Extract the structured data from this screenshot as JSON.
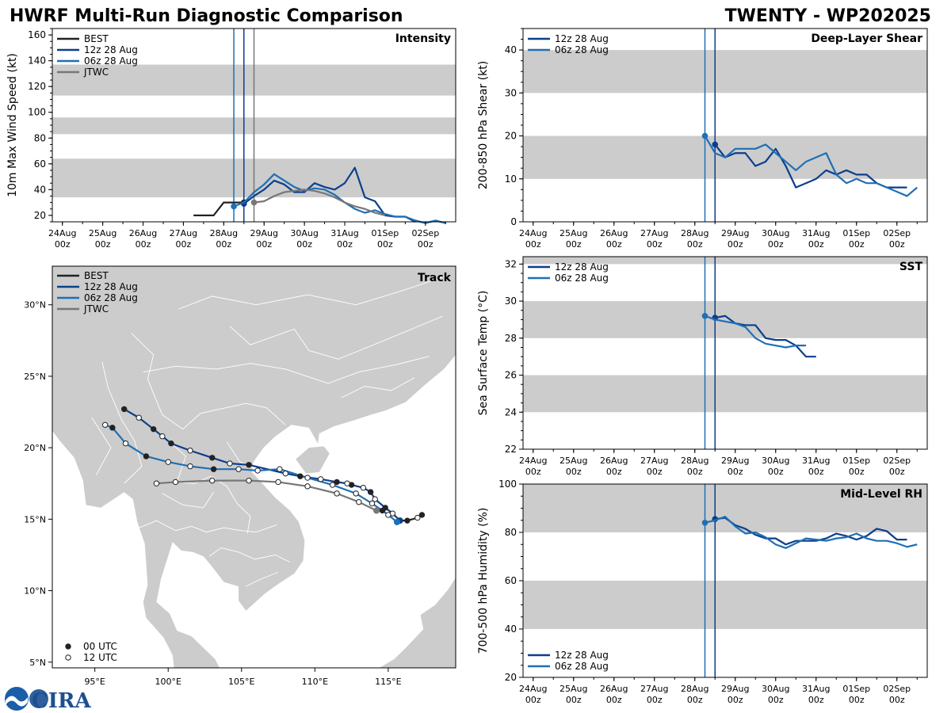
{
  "header": {
    "title_left": "HWRF Multi-Run Diagnostic Comparison",
    "title_right": "TWENTY - WP202025",
    "logo_text": "CIRA"
  },
  "colors": {
    "best": "#222222",
    "run12": "#0b3f8c",
    "run06": "#1f6fb5",
    "jtwc": "#777777",
    "band": "#cccccc",
    "land": "#cccccc"
  },
  "time_axis": {
    "labels": [
      [
        "24Aug",
        "00z"
      ],
      [
        "25Aug",
        "00z"
      ],
      [
        "26Aug",
        "00z"
      ],
      [
        "27Aug",
        "00z"
      ],
      [
        "28Aug",
        "00z"
      ],
      [
        "29Aug",
        "00z"
      ],
      [
        "30Aug",
        "00z"
      ],
      [
        "31Aug",
        "00z"
      ],
      [
        "01Sep",
        "00z"
      ],
      [
        "02Sep",
        "00z"
      ]
    ],
    "tick_days": [
      0,
      1,
      2,
      3,
      4,
      5,
      6,
      7,
      8,
      9
    ],
    "range_days": [
      -0.25,
      9.75
    ]
  },
  "chart_data": [
    {
      "type": "line",
      "name": "intensity",
      "title": "Intensity",
      "ylabel": "10m Max Wind Speed (kt)",
      "ylim": [
        15,
        165
      ],
      "yticks": [
        20,
        40,
        60,
        80,
        100,
        120,
        140,
        160
      ],
      "bands": [
        [
          34,
          64
        ],
        [
          83,
          96
        ],
        [
          113,
          137
        ]
      ],
      "vlines": [
        {
          "x": 4.25,
          "color": "run06"
        },
        {
          "x": 4.5,
          "color": "run12"
        },
        {
          "x": 4.75,
          "color": "jtwc"
        }
      ],
      "legend": [
        "BEST",
        "12z 28 Aug",
        "06z 28 Aug",
        "JTWC"
      ],
      "series": [
        {
          "name": "BEST",
          "color": "best",
          "x": [
            3.25,
            3.75,
            4.0,
            4.25,
            4.5
          ],
          "y": [
            20,
            20,
            30,
            30,
            30
          ],
          "marker_x": 4.5,
          "marker_y": 30
        },
        {
          "name": "12z 28 Aug",
          "color": "run12",
          "x": [
            4.5,
            4.75,
            5.0,
            5.25,
            5.5,
            5.75,
            6.0,
            6.25,
            6.5,
            6.75,
            7.0,
            7.25,
            7.5,
            7.75,
            8.0,
            8.25,
            8.5,
            8.75
          ],
          "y": [
            29,
            35,
            40,
            47,
            44,
            38,
            38,
            45,
            42,
            40,
            45,
            57,
            34,
            31,
            20,
            19,
            19,
            15
          ],
          "marker_x": 4.5,
          "marker_y": 29
        },
        {
          "name": "06z 28 Aug",
          "color": "run06",
          "x": [
            4.25,
            4.5,
            4.75,
            5.0,
            5.25,
            5.5,
            5.75,
            6.0,
            6.25,
            6.5,
            6.75,
            7.0,
            7.25,
            7.5,
            7.75,
            8.0,
            8.25,
            8.5,
            8.75,
            9.0,
            9.25,
            9.5
          ],
          "y": [
            27,
            30,
            38,
            44,
            52,
            47,
            42,
            39,
            41,
            40,
            36,
            30,
            25,
            22,
            24,
            21,
            19,
            19,
            16,
            14,
            16,
            14
          ],
          "marker_x": 4.25,
          "marker_y": 27
        },
        {
          "name": "JTWC",
          "color": "jtwc",
          "x": [
            4.75,
            5.0,
            5.25,
            5.5,
            5.75,
            6.0,
            6.25,
            6.5,
            6.75,
            7.0,
            7.25,
            7.5,
            7.75,
            8.0
          ],
          "y": [
            30,
            31,
            35,
            38,
            39,
            40,
            39,
            37,
            34,
            30,
            27,
            25,
            22,
            20
          ],
          "marker_x": 4.75,
          "marker_y": 30
        }
      ]
    },
    {
      "type": "line",
      "name": "shear",
      "title": "Deep-Layer Shear",
      "ylabel": "200-850 hPa Shear (kt)",
      "ylim": [
        0,
        45
      ],
      "yticks": [
        0,
        10,
        20,
        30,
        40
      ],
      "bands": [
        [
          10,
          20
        ],
        [
          30,
          40
        ]
      ],
      "vlines": [
        {
          "x": 4.25,
          "color": "run06"
        },
        {
          "x": 4.5,
          "color": "run12"
        }
      ],
      "legend": [
        "12z 28 Aug",
        "06z 28 Aug"
      ],
      "series": [
        {
          "name": "12z 28 Aug",
          "color": "run12",
          "x": [
            4.5,
            4.75,
            5.0,
            5.25,
            5.5,
            5.75,
            6.0,
            6.25,
            6.5,
            6.75,
            7.0,
            7.25,
            7.5,
            7.75,
            8.0,
            8.25,
            8.5,
            8.75,
            9.0,
            9.25
          ],
          "y": [
            18,
            15,
            16,
            16,
            13,
            14,
            17,
            13,
            8,
            9,
            10,
            12,
            11,
            12,
            11,
            11,
            9,
            8,
            8,
            8
          ],
          "marker_x": 4.5,
          "marker_y": 18
        },
        {
          "name": "06z 28 Aug",
          "color": "run06",
          "x": [
            4.25,
            4.5,
            4.75,
            5.0,
            5.25,
            5.5,
            5.75,
            6.0,
            6.25,
            6.5,
            6.75,
            7.0,
            7.25,
            7.5,
            7.75,
            8.0,
            8.25,
            8.5,
            8.75,
            9.0,
            9.25,
            9.5
          ],
          "y": [
            20,
            16,
            15,
            17,
            17,
            17,
            18,
            16,
            14,
            12,
            14,
            15,
            16,
            11,
            9,
            10,
            9,
            9,
            8,
            7,
            6,
            8
          ],
          "marker_x": 4.25,
          "marker_y": 20
        }
      ]
    },
    {
      "type": "line",
      "name": "sst",
      "title": "SST",
      "ylabel": "Sea Surface Temp (°C)",
      "ylim": [
        22,
        32.4
      ],
      "yticks": [
        22,
        24,
        26,
        28,
        30,
        32
      ],
      "bands": [
        [
          24,
          26
        ],
        [
          28,
          30
        ],
        [
          32,
          32.4
        ]
      ],
      "vlines": [
        {
          "x": 4.25,
          "color": "run06"
        },
        {
          "x": 4.5,
          "color": "run12"
        }
      ],
      "legend": [
        "12z 28 Aug",
        "06z 28 Aug"
      ],
      "series": [
        {
          "name": "12z 28 Aug",
          "color": "run12",
          "x": [
            4.5,
            4.75,
            5.0,
            5.25,
            5.5,
            5.75,
            6.0,
            6.25,
            6.5,
            6.75,
            7.0
          ],
          "y": [
            29.1,
            29.2,
            28.8,
            28.7,
            28.7,
            28.0,
            27.9,
            27.9,
            27.6,
            27.0,
            27.0
          ],
          "marker_x": 4.5,
          "marker_y": 29.1
        },
        {
          "name": "06z 28 Aug",
          "color": "run06",
          "x": [
            4.25,
            4.5,
            4.75,
            5.0,
            5.25,
            5.5,
            5.75,
            6.0,
            6.25,
            6.5,
            6.75
          ],
          "y": [
            29.2,
            29.0,
            28.9,
            28.8,
            28.6,
            28.0,
            27.7,
            27.6,
            27.5,
            27.6,
            27.6
          ],
          "marker_x": 4.25,
          "marker_y": 29.2
        }
      ]
    },
    {
      "type": "line",
      "name": "rh",
      "title": "Mid-Level RH",
      "ylabel": "700-500 hPa Humidity (%)",
      "ylim": [
        20,
        100
      ],
      "yticks": [
        20,
        40,
        60,
        80,
        100
      ],
      "bands": [
        [
          40,
          60
        ],
        [
          80,
          100
        ]
      ],
      "vlines": [
        {
          "x": 4.25,
          "color": "run06"
        },
        {
          "x": 4.5,
          "color": "run12"
        }
      ],
      "legend": [
        "12z 28 Aug",
        "06z 28 Aug"
      ],
      "series": [
        {
          "name": "12z 28 Aug",
          "color": "run12",
          "x": [
            4.5,
            4.75,
            5.0,
            5.25,
            5.5,
            5.75,
            6.0,
            6.25,
            6.5,
            6.75,
            7.0,
            7.25,
            7.5,
            7.75,
            8.0,
            8.25,
            8.5,
            8.75,
            9.0,
            9.25
          ],
          "y": [
            85.5,
            86,
            83,
            81.5,
            79,
            77.5,
            77.5,
            75,
            76.5,
            76.5,
            76.5,
            77.5,
            79.5,
            78.5,
            77,
            78.5,
            81.5,
            80.5,
            77,
            77
          ],
          "marker_x": 4.5,
          "marker_y": 85.5
        },
        {
          "name": "06z 28 Aug",
          "color": "run06",
          "x": [
            4.25,
            4.5,
            4.75,
            5.0,
            5.25,
            5.5,
            5.75,
            6.0,
            6.25,
            6.5,
            6.75,
            7.0,
            7.25,
            7.5,
            7.75,
            8.0,
            8.25,
            8.5,
            8.75,
            9.0,
            9.25,
            9.5
          ],
          "y": [
            84,
            85,
            86.5,
            82.5,
            79.5,
            80,
            78,
            75,
            73.5,
            75.5,
            77.5,
            77,
            76.5,
            77.5,
            78,
            79.5,
            77.5,
            76.5,
            76.5,
            75.5,
            74,
            75
          ],
          "marker_x": 4.25,
          "marker_y": 84
        }
      ]
    },
    {
      "type": "scatter",
      "name": "track",
      "title": "Track",
      "xlim": [
        92.1,
        119.6
      ],
      "ylim": [
        4.6,
        32.7
      ],
      "xticks": [
        95,
        100,
        105,
        110,
        115
      ],
      "xticklabels": [
        "95°E",
        "100°E",
        "105°E",
        "110°E",
        "115°E"
      ],
      "yticks": [
        5,
        10,
        15,
        20,
        25,
        30
      ],
      "yticklabels": [
        "5°N",
        "10°N",
        "15°N",
        "20°N",
        "25°N",
        "30°N"
      ],
      "legend": [
        "BEST",
        "12z 28 Aug",
        "06z 28 Aug",
        "JTWC"
      ],
      "marker_legend": [
        "00 UTC",
        "12 UTC"
      ],
      "series": [
        {
          "name": "BEST",
          "color": "best",
          "lon": [
            117.3,
            117.0,
            116.3,
            115.8
          ],
          "lat": [
            15.3,
            15.1,
            14.9,
            14.9
          ],
          "filled": [
            true,
            false,
            true,
            false
          ]
        },
        {
          "name": "12z 28 Aug",
          "color": "run12",
          "lon": [
            115.8,
            115.3,
            114.8,
            114.1,
            113.8,
            113.3,
            112.5,
            112.2,
            111.5,
            110.4,
            109.0,
            108.0,
            105.5,
            104.2,
            103.0,
            101.5,
            100.2,
            99.6,
            99.0,
            98.0,
            97.0
          ],
          "lat": [
            14.9,
            15.4,
            15.8,
            16.4,
            16.9,
            17.2,
            17.4,
            17.5,
            17.6,
            17.8,
            18.0,
            18.2,
            18.8,
            18.9,
            19.3,
            19.8,
            20.3,
            20.8,
            21.3,
            22.1,
            22.7
          ],
          "filled": [
            true,
            false,
            true,
            false,
            true,
            false,
            true,
            false,
            true,
            false,
            true,
            false,
            true,
            false,
            true,
            false,
            true,
            false,
            true,
            false,
            true
          ]
        },
        {
          "name": "06z 28 Aug",
          "color": "run06",
          "lon": [
            115.6,
            115.0,
            114.6,
            113.9,
            112.8,
            111.2,
            109.5,
            107.6,
            106.1,
            104.8,
            103.1,
            101.5,
            100.0,
            98.5,
            97.1,
            96.2,
            95.7
          ],
          "lat": [
            14.8,
            15.3,
            15.6,
            16.1,
            16.8,
            17.4,
            17.9,
            18.5,
            18.4,
            18.5,
            18.5,
            18.7,
            19.0,
            19.4,
            20.3,
            21.4,
            21.6
          ],
          "filled": [
            true,
            false,
            true,
            false,
            false,
            false,
            false,
            false,
            false,
            false,
            true,
            false,
            false,
            true,
            false,
            true,
            false
          ]
        },
        {
          "name": "JTWC",
          "color": "jtwc",
          "lon": [
            114.2,
            113.0,
            111.5,
            109.5,
            107.5,
            105.5,
            103.0,
            100.5,
            99.2
          ],
          "lat": [
            15.6,
            16.2,
            16.8,
            17.3,
            17.6,
            17.7,
            17.7,
            17.6,
            17.5
          ],
          "filled": [
            true,
            false,
            false,
            false,
            false,
            false,
            false,
            false,
            false
          ]
        }
      ]
    }
  ]
}
